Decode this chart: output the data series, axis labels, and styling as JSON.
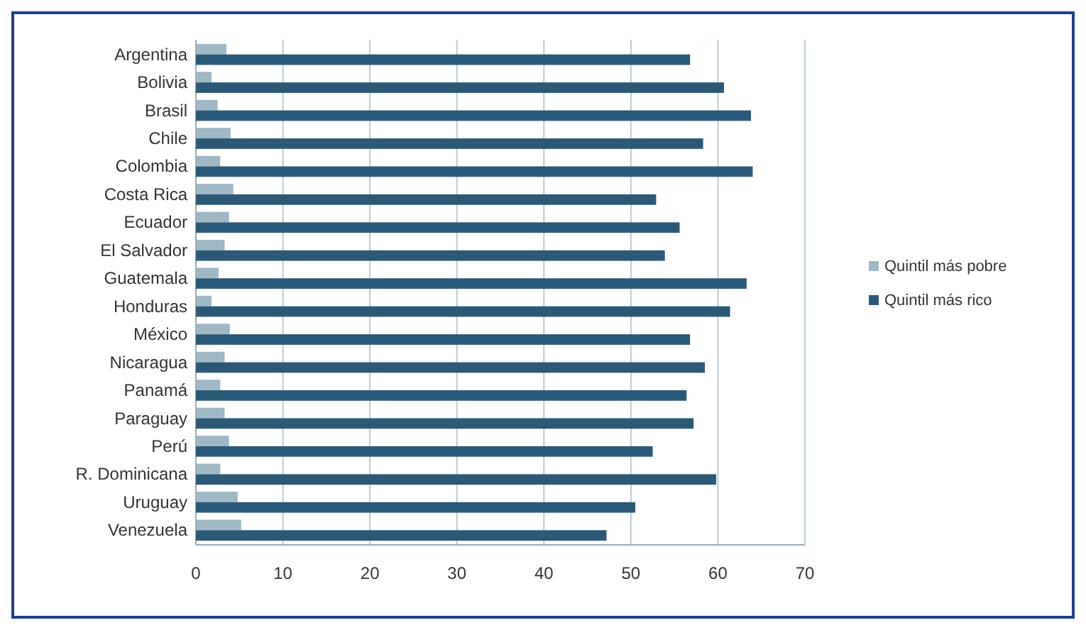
{
  "chart_data": {
    "type": "bar",
    "orientation": "horizontal",
    "categories": [
      "Argentina",
      "Bolivia",
      "Brasil",
      "Chile",
      "Colombia",
      "Costa Rica",
      "Ecuador",
      "El Salvador",
      "Guatemala",
      "Honduras",
      "México",
      "Nicaragua",
      "Panamá",
      "Paraguay",
      "Perú",
      "R. Dominicana",
      "Uruguay",
      "Venezuela"
    ],
    "series": [
      {
        "name": "Quintil más pobre",
        "color": "#9fb8c6",
        "values": [
          3.5,
          1.8,
          2.5,
          4,
          2.8,
          4.3,
          3.8,
          3.3,
          2.6,
          1.8,
          3.9,
          3.3,
          2.8,
          3.3,
          3.8,
          2.8,
          4.8,
          5.2
        ]
      },
      {
        "name": "Quintil más rico",
        "color": "#2a5a78",
        "values": [
          56.8,
          60.7,
          63.8,
          58.3,
          64,
          52.9,
          55.6,
          53.9,
          63.3,
          61.4,
          56.8,
          58.5,
          56.4,
          57.2,
          52.5,
          59.8,
          50.5,
          47.2
        ]
      }
    ],
    "xlim": [
      0,
      70
    ],
    "xticks": [
      0,
      10,
      20,
      30,
      40,
      50,
      60,
      70
    ],
    "grid": "x",
    "legend": "right"
  }
}
